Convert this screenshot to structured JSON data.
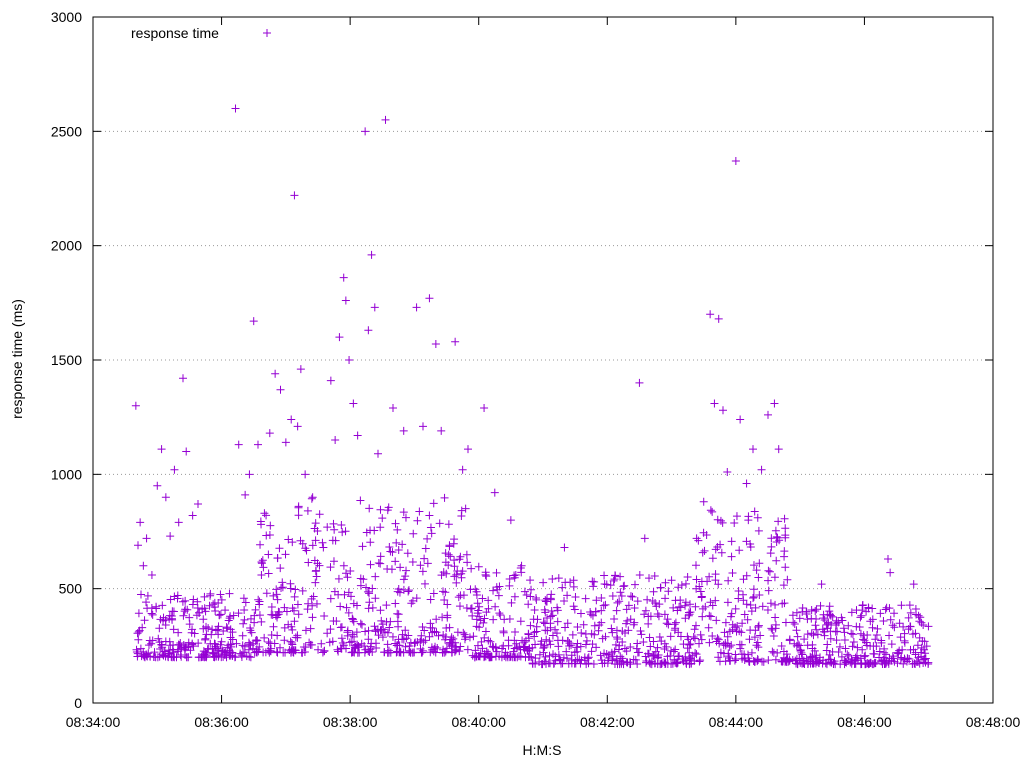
{
  "chart_data": {
    "type": "scatter",
    "title": "",
    "xlabel": "H:M:S",
    "ylabel": "response time (ms)",
    "legend": {
      "placement": "top-left",
      "label": "response time"
    },
    "grid": {
      "horizontal": true,
      "vertical": false,
      "style": "dotted"
    },
    "marker": "+",
    "series_color": "#9400d3",
    "xlim": [
      "08:34:00",
      "08:48:00"
    ],
    "ylim": [
      0,
      3000
    ],
    "x_ticks": [
      "08:34:00",
      "08:36:00",
      "08:38:00",
      "08:40:00",
      "08:42:00",
      "08:44:00",
      "08:46:00",
      "08:48:00"
    ],
    "y_ticks": [
      0,
      500,
      1000,
      1500,
      2000,
      2500,
      3000
    ],
    "series": [
      {
        "name": "response time",
        "points": [
          [
            "08:34:40",
            1300
          ],
          [
            "08:34:42",
            690
          ],
          [
            "08:34:44",
            790
          ],
          [
            "08:34:47",
            600
          ],
          [
            "08:34:50",
            720
          ],
          [
            "08:34:55",
            560
          ],
          [
            "08:35:00",
            950
          ],
          [
            "08:35:04",
            1110
          ],
          [
            "08:35:08",
            900
          ],
          [
            "08:35:12",
            730
          ],
          [
            "08:35:16",
            1020
          ],
          [
            "08:35:20",
            790
          ],
          [
            "08:35:24",
            1420
          ],
          [
            "08:35:27",
            1100
          ],
          [
            "08:35:33",
            820
          ],
          [
            "08:35:38",
            870
          ],
          [
            "08:36:13",
            2600
          ],
          [
            "08:36:16",
            1130
          ],
          [
            "08:36:22",
            910
          ],
          [
            "08:36:26",
            1000
          ],
          [
            "08:36:30",
            1670
          ],
          [
            "08:36:34",
            1130
          ],
          [
            "08:36:40",
            830
          ],
          [
            "08:36:45",
            1180
          ],
          [
            "08:36:50",
            1440
          ],
          [
            "08:36:55",
            1370
          ],
          [
            "08:37:00",
            1140
          ],
          [
            "08:37:05",
            1240
          ],
          [
            "08:37:08",
            2220
          ],
          [
            "08:37:11",
            1210
          ],
          [
            "08:37:14",
            1460
          ],
          [
            "08:37:18",
            1000
          ],
          [
            "08:37:25",
            900
          ],
          [
            "08:37:35",
            680
          ],
          [
            "08:37:42",
            1410
          ],
          [
            "08:37:46",
            1150
          ],
          [
            "08:37:50",
            1600
          ],
          [
            "08:37:54",
            1860
          ],
          [
            "08:37:56",
            1760
          ],
          [
            "08:37:59",
            1500
          ],
          [
            "08:38:03",
            1310
          ],
          [
            "08:38:07",
            1170
          ],
          [
            "08:38:14",
            2500
          ],
          [
            "08:38:17",
            1630
          ],
          [
            "08:38:20",
            1960
          ],
          [
            "08:38:23",
            1730
          ],
          [
            "08:38:26",
            1090
          ],
          [
            "08:38:33",
            2550
          ],
          [
            "08:38:40",
            1290
          ],
          [
            "08:38:50",
            1190
          ],
          [
            "08:39:02",
            1730
          ],
          [
            "08:39:08",
            1210
          ],
          [
            "08:39:14",
            1770
          ],
          [
            "08:39:20",
            1570
          ],
          [
            "08:39:25",
            1190
          ],
          [
            "08:39:38",
            1580
          ],
          [
            "08:39:45",
            1020
          ],
          [
            "08:39:50",
            1110
          ],
          [
            "08:40:05",
            1290
          ],
          [
            "08:40:15",
            920
          ],
          [
            "08:40:30",
            800
          ],
          [
            "08:40:40",
            600
          ],
          [
            "08:41:20",
            680
          ],
          [
            "08:42:30",
            1400
          ],
          [
            "08:42:35",
            720
          ],
          [
            "08:43:25",
            710
          ],
          [
            "08:43:30",
            880
          ],
          [
            "08:43:36",
            1700
          ],
          [
            "08:43:40",
            1310
          ],
          [
            "08:43:44",
            1680
          ],
          [
            "08:43:48",
            1280
          ],
          [
            "08:43:52",
            1010
          ],
          [
            "08:43:56",
            640
          ],
          [
            "08:44:00",
            2370
          ],
          [
            "08:44:04",
            1240
          ],
          [
            "08:44:10",
            960
          ],
          [
            "08:44:16",
            1110
          ],
          [
            "08:44:24",
            1020
          ],
          [
            "08:44:30",
            1260
          ],
          [
            "08:44:36",
            1310
          ],
          [
            "08:44:40",
            1110
          ],
          [
            "08:44:45",
            640
          ],
          [
            "08:45:20",
            520
          ],
          [
            "08:46:22",
            630
          ],
          [
            "08:46:24",
            570
          ],
          [
            "08:46:46",
            520
          ]
        ],
        "bands": [
          {
            "from": "08:34:40",
            "to": "08:36:30",
            "low": 200,
            "high": 480
          },
          {
            "from": "08:36:30",
            "to": "08:39:50",
            "low": 220,
            "high": 900
          },
          {
            "from": "08:39:50",
            "to": "08:40:50",
            "low": 200,
            "high": 600
          },
          {
            "from": "08:40:50",
            "to": "08:43:20",
            "low": 170,
            "high": 560
          },
          {
            "from": "08:43:20",
            "to": "08:44:50",
            "low": 180,
            "high": 850
          },
          {
            "from": "08:44:50",
            "to": "08:47:00",
            "low": 170,
            "high": 430
          }
        ]
      }
    ]
  }
}
